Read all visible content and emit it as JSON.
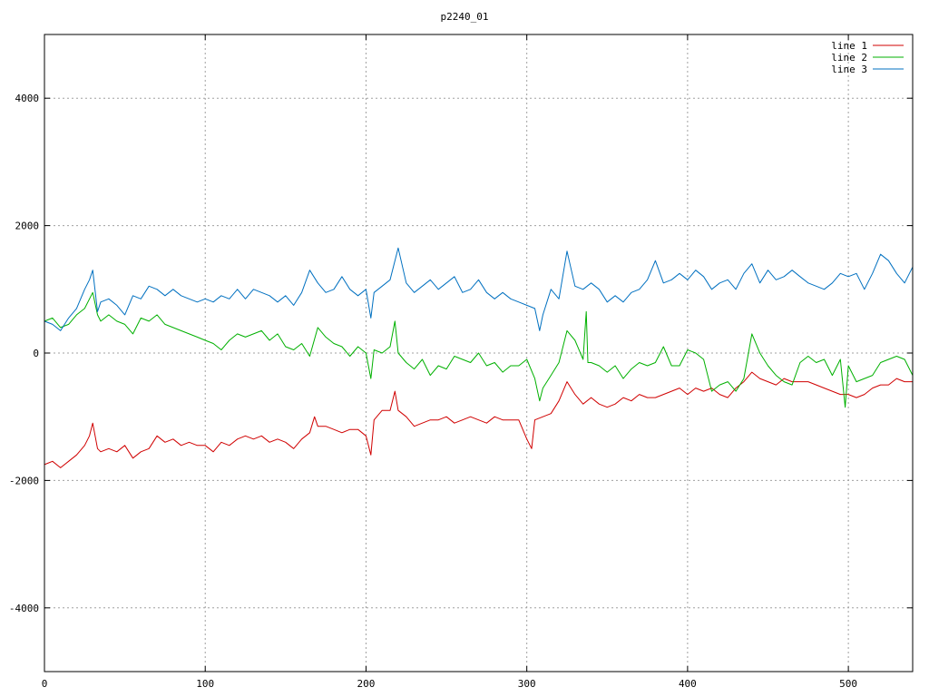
{
  "chart_data": {
    "type": "line",
    "title": "p2240_01",
    "xlabel": "",
    "ylabel": "",
    "xlim": [
      0,
      540
    ],
    "ylim": [
      -5000,
      5000
    ],
    "xticks": [
      0,
      100,
      200,
      300,
      400,
      500
    ],
    "yticks": [
      -4000,
      -2000,
      0,
      2000,
      4000
    ],
    "xtick_labels": [
      "0",
      "100",
      "200",
      "300",
      "400",
      "500"
    ],
    "ytick_labels": [
      "-4000",
      "-2000",
      "0",
      "2000",
      "4000"
    ],
    "grid": true,
    "legend_position": "top-right",
    "series": [
      {
        "name": "line 1",
        "color": "#d00000",
        "x": [
          0,
          5,
          10,
          15,
          20,
          25,
          28,
          30,
          33,
          35,
          40,
          45,
          50,
          55,
          60,
          65,
          70,
          75,
          80,
          85,
          90,
          95,
          100,
          105,
          110,
          115,
          120,
          125,
          130,
          135,
          140,
          145,
          150,
          155,
          160,
          165,
          168,
          170,
          175,
          180,
          185,
          190,
          195,
          200,
          203,
          205,
          210,
          215,
          218,
          220,
          225,
          230,
          235,
          240,
          245,
          250,
          255,
          260,
          265,
          270,
          275,
          280,
          285,
          290,
          295,
          300,
          303,
          305,
          310,
          315,
          320,
          325,
          330,
          335,
          340,
          345,
          350,
          355,
          360,
          365,
          370,
          375,
          380,
          385,
          390,
          395,
          400,
          405,
          410,
          415,
          420,
          425,
          430,
          435,
          440,
          445,
          450,
          455,
          460,
          465,
          470,
          475,
          480,
          485,
          490,
          495,
          500,
          505,
          510,
          515,
          520,
          525,
          530,
          535,
          540
        ],
        "values": [
          -1750,
          -1700,
          -1800,
          -1700,
          -1600,
          -1450,
          -1300,
          -1100,
          -1500,
          -1550,
          -1500,
          -1550,
          -1450,
          -1650,
          -1550,
          -1500,
          -1300,
          -1400,
          -1350,
          -1450,
          -1400,
          -1450,
          -1450,
          -1550,
          -1400,
          -1450,
          -1350,
          -1300,
          -1350,
          -1300,
          -1400,
          -1350,
          -1400,
          -1500,
          -1350,
          -1250,
          -1000,
          -1150,
          -1150,
          -1200,
          -1250,
          -1200,
          -1200,
          -1300,
          -1600,
          -1050,
          -900,
          -900,
          -600,
          -900,
          -1000,
          -1150,
          -1100,
          -1050,
          -1050,
          -1000,
          -1100,
          -1050,
          -1000,
          -1050,
          -1100,
          -1000,
          -1050,
          -1050,
          -1050,
          -1350,
          -1500,
          -1050,
          -1000,
          -950,
          -750,
          -450,
          -650,
          -800,
          -700,
          -800,
          -850,
          -800,
          -700,
          -750,
          -650,
          -700,
          -700,
          -650,
          -600,
          -550,
          -650,
          -550,
          -600,
          -550,
          -650,
          -700,
          -550,
          -450,
          -300,
          -400,
          -450,
          -500,
          -400,
          -450,
          -450,
          -450,
          -500,
          -550,
          -600,
          -650,
          -650,
          -700,
          -650,
          -550,
          -500,
          -500,
          -400,
          -450,
          -450
        ]
      },
      {
        "name": "line 2",
        "color": "#00b000",
        "x": [
          0,
          5,
          10,
          15,
          20,
          25,
          30,
          33,
          35,
          40,
          45,
          50,
          55,
          60,
          65,
          70,
          75,
          80,
          85,
          90,
          95,
          100,
          105,
          110,
          115,
          120,
          125,
          130,
          135,
          140,
          145,
          150,
          155,
          160,
          165,
          170,
          175,
          180,
          185,
          190,
          195,
          200,
          203,
          205,
          210,
          215,
          218,
          220,
          225,
          230,
          235,
          240,
          245,
          250,
          255,
          260,
          265,
          270,
          275,
          280,
          285,
          290,
          295,
          300,
          305,
          308,
          310,
          315,
          320,
          325,
          330,
          335,
          337,
          338,
          340,
          345,
          350,
          355,
          360,
          365,
          370,
          375,
          380,
          385,
          390,
          395,
          400,
          405,
          410,
          415,
          420,
          425,
          430,
          435,
          440,
          445,
          450,
          455,
          460,
          465,
          470,
          475,
          480,
          485,
          490,
          495,
          498,
          500,
          505,
          510,
          515,
          520,
          525,
          530,
          535,
          540
        ],
        "values": [
          500,
          550,
          400,
          450,
          600,
          700,
          950,
          600,
          500,
          600,
          500,
          450,
          300,
          550,
          500,
          600,
          450,
          400,
          350,
          300,
          250,
          200,
          150,
          50,
          200,
          300,
          250,
          300,
          350,
          200,
          300,
          100,
          50,
          150,
          -50,
          400,
          250,
          150,
          100,
          -50,
          100,
          0,
          -400,
          50,
          0,
          100,
          500,
          0,
          -150,
          -250,
          -100,
          -350,
          -200,
          -250,
          -50,
          -100,
          -150,
          0,
          -200,
          -150,
          -300,
          -200,
          -200,
          -100,
          -400,
          -750,
          -550,
          -350,
          -150,
          350,
          200,
          -100,
          650,
          -150,
          -150,
          -200,
          -300,
          -200,
          -400,
          -250,
          -150,
          -200,
          -150,
          100,
          -200,
          -200,
          50,
          0,
          -100,
          -600,
          -500,
          -450,
          -600,
          -400,
          300,
          0,
          -200,
          -350,
          -450,
          -500,
          -150,
          -50,
          -150,
          -100,
          -350,
          -100,
          -850,
          -200,
          -450,
          -400,
          -350,
          -150,
          -100,
          -50,
          -100,
          -350
        ]
      },
      {
        "name": "line 3",
        "color": "#0070c0",
        "x": [
          0,
          5,
          10,
          15,
          20,
          25,
          28,
          30,
          33,
          35,
          40,
          45,
          50,
          55,
          60,
          65,
          70,
          75,
          80,
          85,
          90,
          95,
          100,
          105,
          110,
          115,
          120,
          125,
          130,
          135,
          140,
          145,
          150,
          155,
          160,
          165,
          170,
          175,
          180,
          185,
          190,
          195,
          200,
          203,
          205,
          210,
          215,
          220,
          225,
          230,
          235,
          240,
          245,
          250,
          255,
          260,
          265,
          270,
          275,
          280,
          285,
          290,
          295,
          300,
          305,
          308,
          310,
          315,
          320,
          325,
          330,
          335,
          340,
          345,
          350,
          355,
          360,
          365,
          370,
          375,
          380,
          385,
          390,
          395,
          400,
          405,
          410,
          415,
          420,
          425,
          430,
          435,
          440,
          445,
          450,
          455,
          460,
          465,
          470,
          475,
          480,
          485,
          490,
          495,
          500,
          505,
          510,
          515,
          520,
          525,
          530,
          535,
          540
        ],
        "values": [
          500,
          450,
          350,
          550,
          700,
          1000,
          1150,
          1300,
          650,
          800,
          850,
          750,
          600,
          900,
          850,
          1050,
          1000,
          900,
          1000,
          900,
          850,
          800,
          850,
          800,
          900,
          850,
          1000,
          850,
          1000,
          950,
          900,
          800,
          900,
          750,
          950,
          1300,
          1100,
          950,
          1000,
          1200,
          1000,
          900,
          1000,
          550,
          950,
          1050,
          1150,
          1650,
          1100,
          950,
          1050,
          1150,
          1000,
          1100,
          1200,
          950,
          1000,
          1150,
          950,
          850,
          950,
          850,
          800,
          750,
          700,
          350,
          600,
          1000,
          850,
          1600,
          1050,
          1000,
          1100,
          1000,
          800,
          900,
          800,
          950,
          1000,
          1150,
          1450,
          1100,
          1150,
          1250,
          1150,
          1300,
          1200,
          1000,
          1100,
          1150,
          1000,
          1250,
          1400,
          1100,
          1300,
          1150,
          1200,
          1300,
          1200,
          1100,
          1050,
          1000,
          1100,
          1250,
          1200,
          1250,
          1000,
          1250,
          1550,
          1450,
          1250,
          1100,
          1350
        ]
      }
    ]
  }
}
